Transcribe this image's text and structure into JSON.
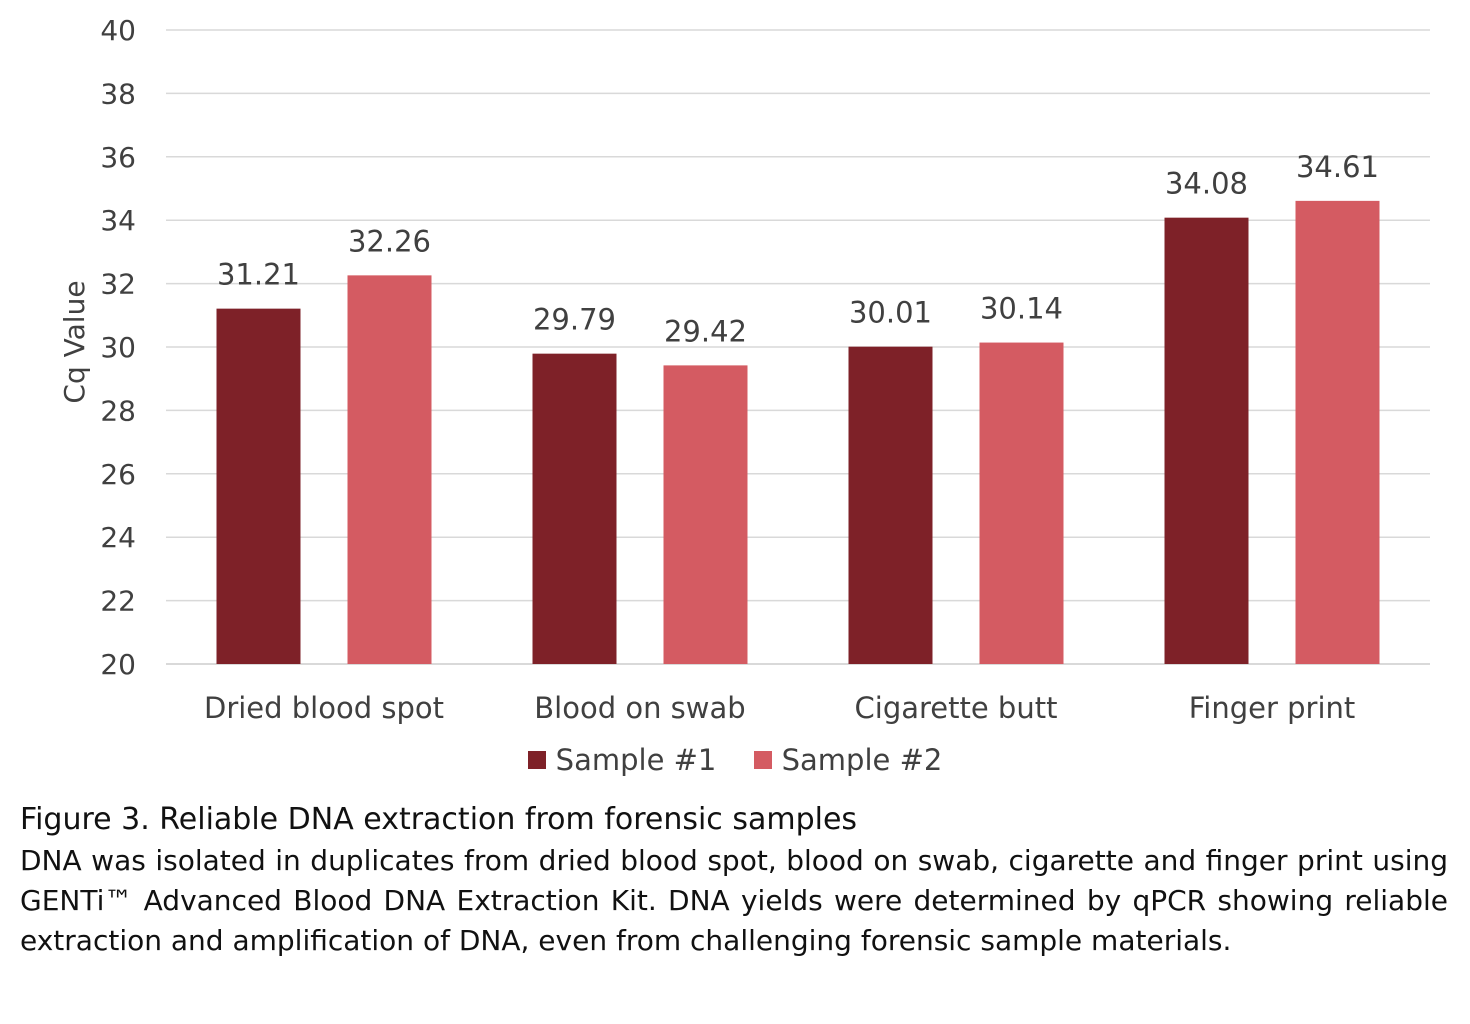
{
  "chart_data": {
    "type": "bar",
    "categories": [
      "Dried blood spot",
      "Blood on swab",
      "Cigarette butt",
      "Finger print"
    ],
    "series": [
      {
        "name": "Sample #1",
        "color": "#7E2128",
        "values": [
          31.21,
          29.79,
          30.01,
          34.08
        ],
        "labels": [
          "31.21",
          "29.79",
          "30.01",
          "34.08"
        ]
      },
      {
        "name": "Sample #2",
        "color": "#D45B62",
        "values": [
          32.26,
          29.42,
          30.14,
          34.61
        ],
        "labels": [
          "32.26",
          "29.42",
          "30.14",
          "34.61"
        ]
      }
    ],
    "ylabel": "Cq Value",
    "ylim": [
      20,
      40
    ],
    "yticks": [
      "20",
      "22",
      "24",
      "26",
      "28",
      "30",
      "32",
      "34",
      "36",
      "38",
      "40"
    ],
    "grid": true,
    "gridColor": "#D9D9D9",
    "legend_position": "bottom"
  },
  "caption": {
    "title": "Figure 3. Reliable DNA extraction from forensic samples",
    "body": "DNA was isolated in duplicates from dried blood spot, blood on swab, cigarette and finger print using GENTi™ Advanced Blood DNA Extraction Kit. DNA yields were determined by qPCR showing reliable extraction and amplification of DNA, even from challenging forensic sample materials."
  }
}
